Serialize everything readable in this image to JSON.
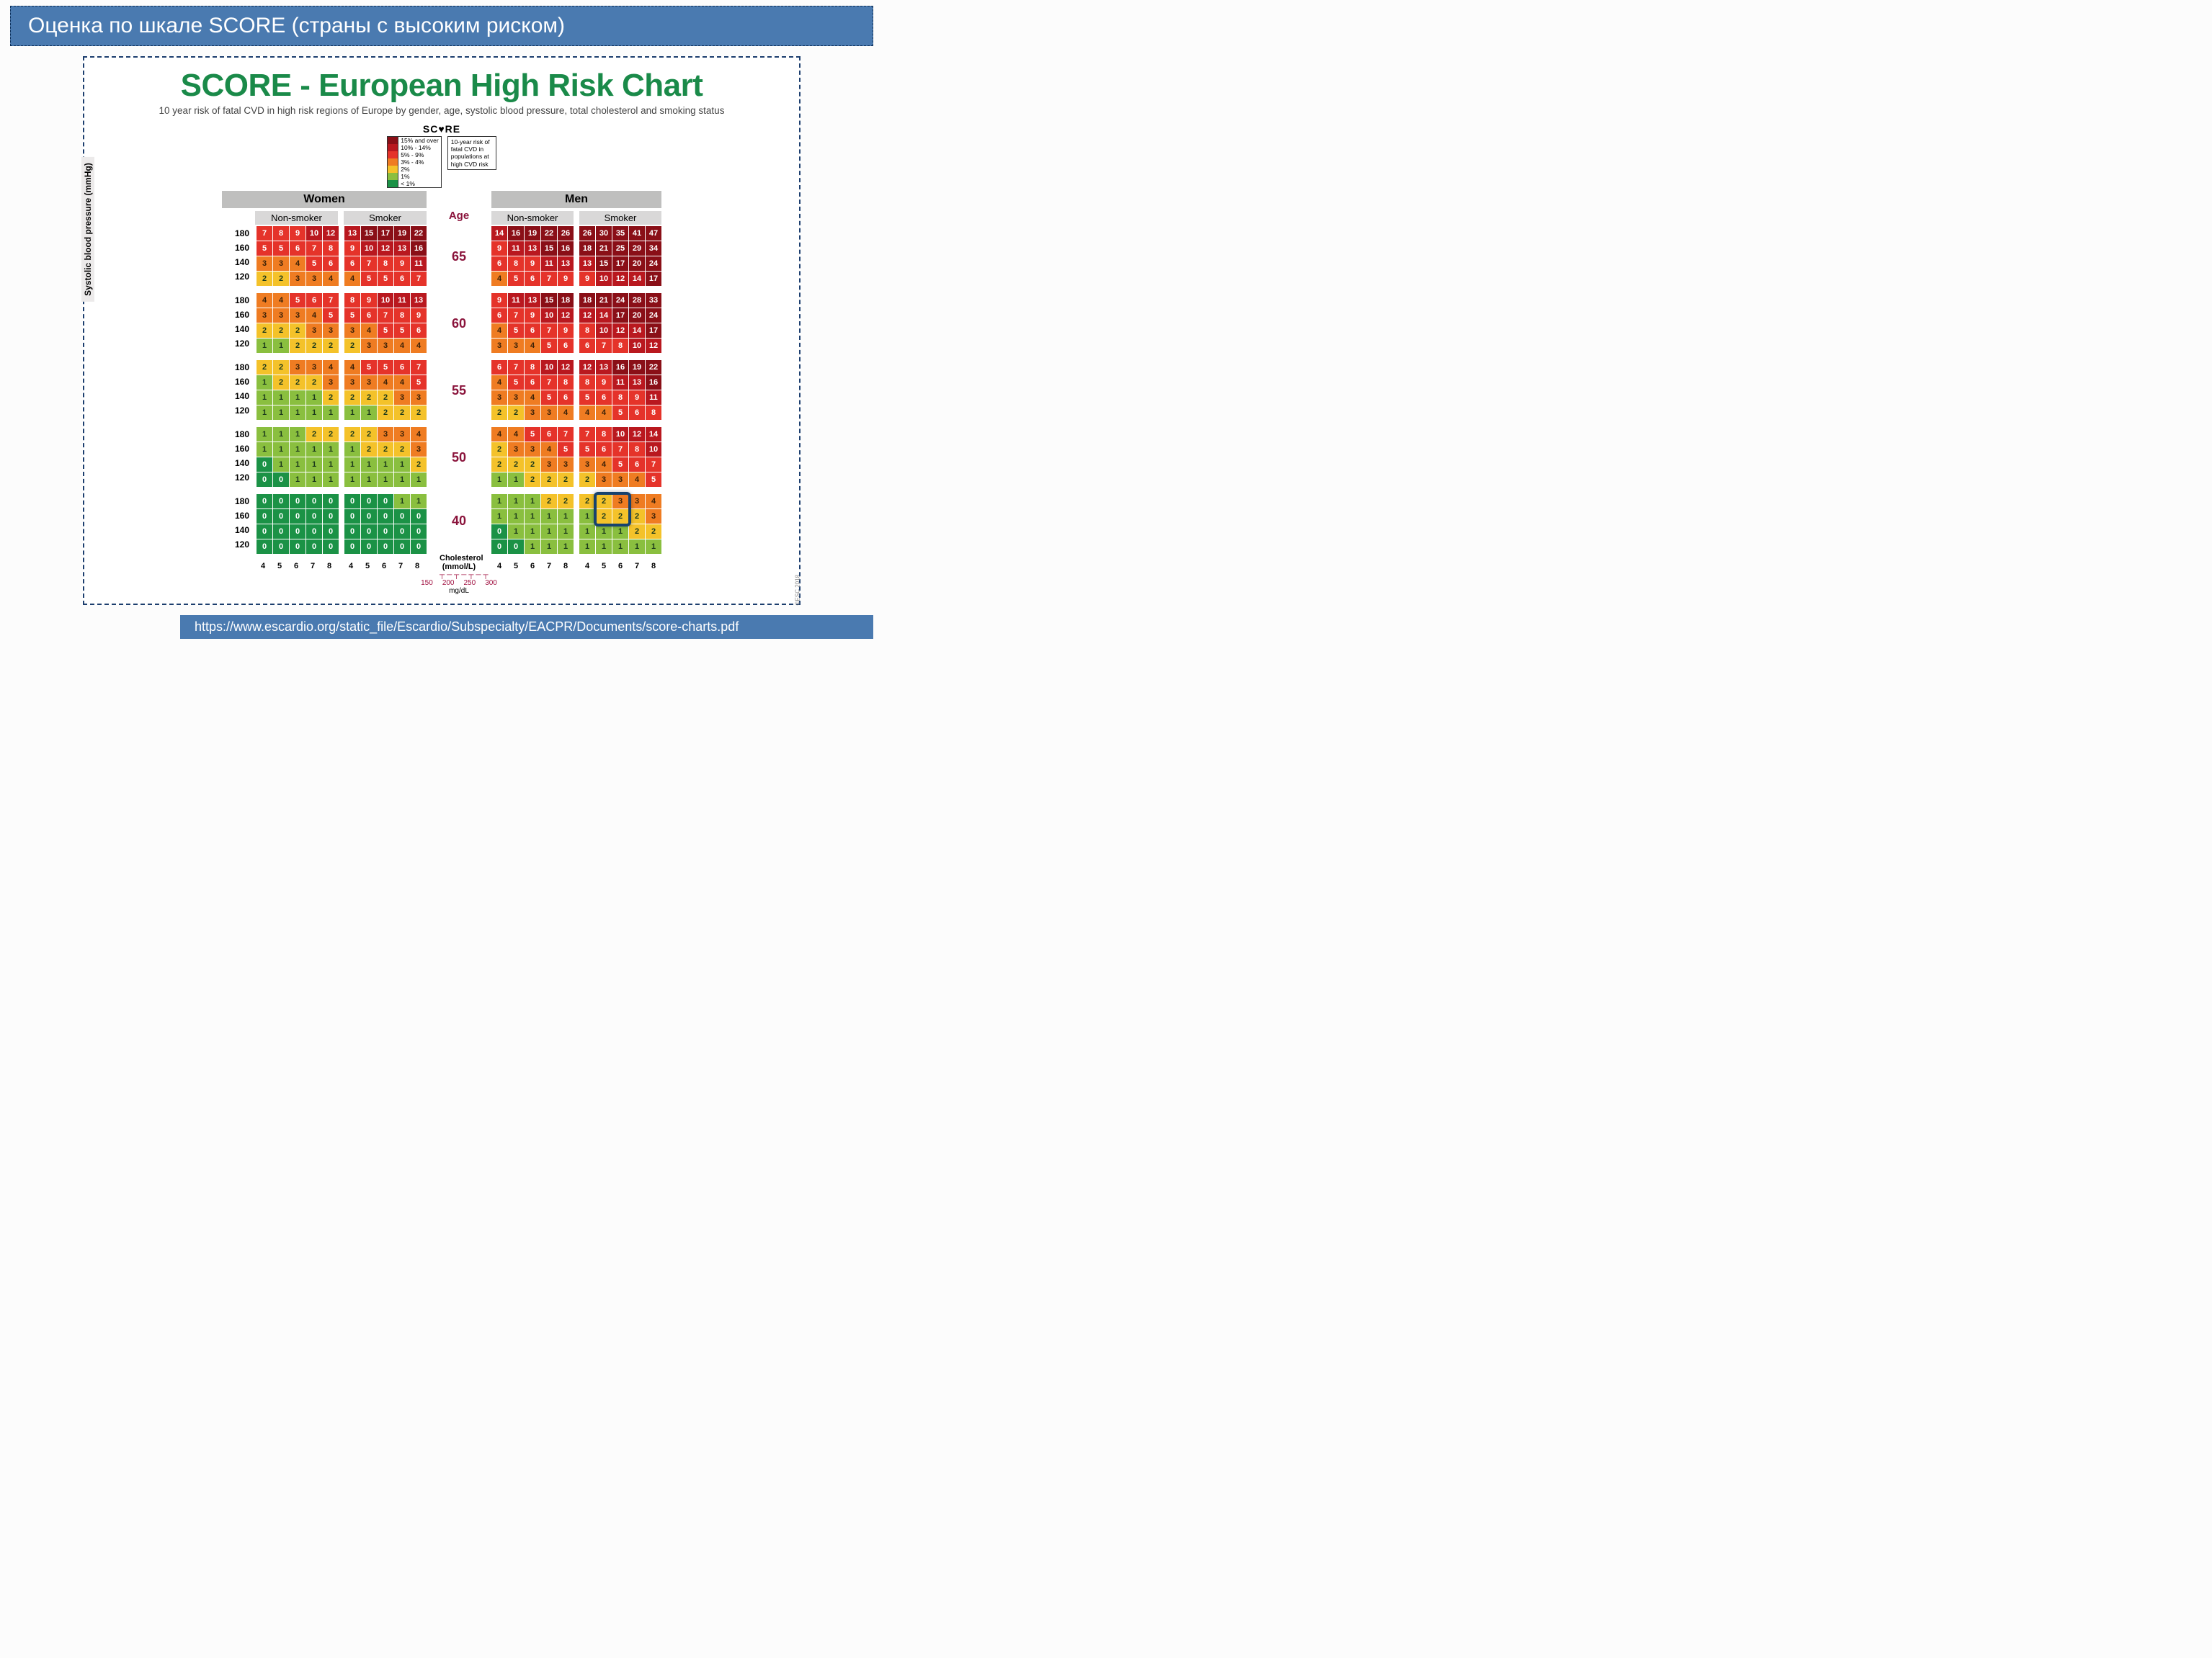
{
  "title_bar": "Оценка по шкале SCORE (страны с высоким риском)",
  "chart_title": "SCORE - European High Risk Chart",
  "chart_sub": "10 year risk of fatal CVD in high risk regions of Europe by gender, age, systolic blood pressure, total cholesterol and smoking status",
  "score_word": "SC♥RE",
  "footer": "https://www.escardio.org/static_file/Escardio/Subspecialty/EACPR/Documents/score-charts.pdf",
  "esc_credit": "©ESC 2018",
  "legend_items": [
    {
      "label": "15% and over",
      "color": "#8a0f17"
    },
    {
      "label": "10% - 14%",
      "color": "#b9181f"
    },
    {
      "label": "5% - 9%",
      "color": "#e5332a"
    },
    {
      "label": "3% - 4%",
      "color": "#ef7c22"
    },
    {
      "label": "2%",
      "color": "#f4c22a"
    },
    {
      "label": "1%",
      "color": "#8abf3f"
    },
    {
      "label": "< 1%",
      "color": "#1b9246"
    }
  ],
  "legend_caption": "10-year risk of fatal CVD in populations at high CVD risk",
  "genders": {
    "women": "Women",
    "men": "Men"
  },
  "smoker_labels": {
    "non": "Non-smoker",
    "yes": "Smoker"
  },
  "age_header": "Age",
  "bp_rows": [
    "180",
    "160",
    "140",
    "120"
  ],
  "chol_cols": [
    "4",
    "5",
    "6",
    "7",
    "8"
  ],
  "ages": [
    "65",
    "60",
    "55",
    "50",
    "40"
  ],
  "chol_caption": "Cholesterol (mmol/L)",
  "mgdl_ticks": [
    "150",
    "200",
    "250",
    "300"
  ],
  "mgdl_label": "mg/dL",
  "y_axis": "Systolic blood pressure (mmHg)",
  "colors": {
    "c0": "#1b9246",
    "c1": "#8abf3f",
    "c2": "#f4c22a",
    "c3": "#ef7c22",
    "c4": "#ef7c22",
    "c5": "#e5332a",
    "c6": "#e5332a",
    "c7": "#e5332a",
    "c8": "#e5332a",
    "c9": "#e5332a",
    "c10": "#b9181f",
    "c11": "#b9181f",
    "c12": "#b9181f",
    "c13": "#b9181f",
    "c14": "#b9181f",
    "c15": "#8a0f17"
  },
  "blocks": {
    "women_non": [
      [
        [
          7,
          8,
          9,
          10,
          12
        ],
        [
          5,
          5,
          6,
          7,
          8
        ],
        [
          3,
          3,
          4,
          5,
          6
        ],
        [
          2,
          2,
          3,
          3,
          4
        ]
      ],
      [
        [
          4,
          4,
          5,
          6,
          7
        ],
        [
          3,
          3,
          3,
          4,
          5
        ],
        [
          2,
          2,
          2,
          3,
          3
        ],
        [
          1,
          1,
          2,
          2,
          2
        ]
      ],
      [
        [
          2,
          2,
          3,
          3,
          4
        ],
        [
          1,
          2,
          2,
          2,
          3
        ],
        [
          1,
          1,
          1,
          1,
          2
        ],
        [
          1,
          1,
          1,
          1,
          1
        ]
      ],
      [
        [
          1,
          1,
          1,
          2,
          2
        ],
        [
          1,
          1,
          1,
          1,
          1
        ],
        [
          0,
          1,
          1,
          1,
          1
        ],
        [
          0,
          0,
          1,
          1,
          1
        ]
      ],
      [
        [
          0,
          0,
          0,
          0,
          0
        ],
        [
          0,
          0,
          0,
          0,
          0
        ],
        [
          0,
          0,
          0,
          0,
          0
        ],
        [
          0,
          0,
          0,
          0,
          0
        ]
      ]
    ],
    "women_smk": [
      [
        [
          13,
          15,
          17,
          19,
          22
        ],
        [
          9,
          10,
          12,
          13,
          16
        ],
        [
          6,
          7,
          8,
          9,
          11
        ],
        [
          4,
          5,
          5,
          6,
          7
        ]
      ],
      [
        [
          8,
          9,
          10,
          11,
          13
        ],
        [
          5,
          6,
          7,
          8,
          9
        ],
        [
          3,
          4,
          5,
          5,
          6
        ],
        [
          2,
          3,
          3,
          4,
          4
        ]
      ],
      [
        [
          4,
          5,
          5,
          6,
          7
        ],
        [
          3,
          3,
          4,
          4,
          5
        ],
        [
          2,
          2,
          2,
          3,
          3
        ],
        [
          1,
          1,
          2,
          2,
          2
        ]
      ],
      [
        [
          2,
          2,
          3,
          3,
          4
        ],
        [
          1,
          2,
          2,
          2,
          3
        ],
        [
          1,
          1,
          1,
          1,
          2
        ],
        [
          1,
          1,
          1,
          1,
          1
        ]
      ],
      [
        [
          0,
          0,
          0,
          1,
          1
        ],
        [
          0,
          0,
          0,
          0,
          0
        ],
        [
          0,
          0,
          0,
          0,
          0
        ],
        [
          0,
          0,
          0,
          0,
          0
        ]
      ]
    ],
    "men_non": [
      [
        [
          14,
          16,
          19,
          22,
          26
        ],
        [
          9,
          11,
          13,
          15,
          16
        ],
        [
          6,
          8,
          9,
          11,
          13
        ],
        [
          4,
          5,
          6,
          7,
          9
        ]
      ],
      [
        [
          9,
          11,
          13,
          15,
          18
        ],
        [
          6,
          7,
          9,
          10,
          12
        ],
        [
          4,
          5,
          6,
          7,
          9
        ],
        [
          3,
          3,
          4,
          5,
          6
        ]
      ],
      [
        [
          6,
          7,
          8,
          10,
          12
        ],
        [
          4,
          5,
          6,
          7,
          8
        ],
        [
          3,
          3,
          4,
          5,
          6
        ],
        [
          2,
          2,
          3,
          3,
          4
        ]
      ],
      [
        [
          4,
          4,
          5,
          6,
          7
        ],
        [
          2,
          3,
          3,
          4,
          5
        ],
        [
          2,
          2,
          2,
          3,
          3
        ],
        [
          1,
          1,
          2,
          2,
          2
        ]
      ],
      [
        [
          1,
          1,
          1,
          2,
          2
        ],
        [
          1,
          1,
          1,
          1,
          1
        ],
        [
          0,
          1,
          1,
          1,
          1
        ],
        [
          0,
          0,
          1,
          1,
          1
        ]
      ]
    ],
    "men_smk": [
      [
        [
          26,
          30,
          35,
          41,
          47
        ],
        [
          18,
          21,
          25,
          29,
          34
        ],
        [
          13,
          15,
          17,
          20,
          24
        ],
        [
          9,
          10,
          12,
          14,
          17
        ]
      ],
      [
        [
          18,
          21,
          24,
          28,
          33
        ],
        [
          12,
          14,
          17,
          20,
          24
        ],
        [
          8,
          10,
          12,
          14,
          17
        ],
        [
          6,
          7,
          8,
          10,
          12
        ]
      ],
      [
        [
          12,
          13,
          16,
          19,
          22
        ],
        [
          8,
          9,
          11,
          13,
          16
        ],
        [
          5,
          6,
          8,
          9,
          11
        ],
        [
          4,
          4,
          5,
          6,
          8
        ]
      ],
      [
        [
          7,
          8,
          10,
          12,
          14
        ],
        [
          5,
          6,
          7,
          8,
          10
        ],
        [
          3,
          4,
          5,
          6,
          7
        ],
        [
          2,
          3,
          3,
          4,
          5
        ]
      ],
      [
        [
          2,
          2,
          3,
          3,
          4
        ],
        [
          1,
          2,
          2,
          2,
          3
        ],
        [
          1,
          1,
          1,
          2,
          2
        ],
        [
          1,
          1,
          1,
          1,
          1
        ]
      ]
    ]
  },
  "highlight": {
    "block": "men_smk",
    "age_idx": 4,
    "row_from": 0,
    "row_to": 1,
    "col_from": 1,
    "col_to": 2
  }
}
